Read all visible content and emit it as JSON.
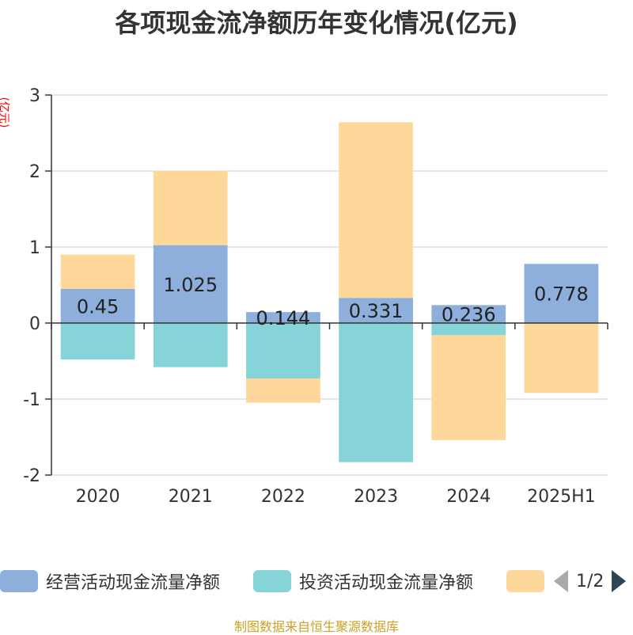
{
  "chart_data": {
    "type": "bar",
    "stacked": true,
    "title": "各项现金流净额历年变化情况(亿元)",
    "unit_label": "(亿元)",
    "categories": [
      "2020",
      "2021",
      "2022",
      "2023",
      "2024",
      "2025H1"
    ],
    "ylim": [
      -2,
      3
    ],
    "yticks": [
      -2,
      -1,
      0,
      1,
      2,
      3
    ],
    "grid": true,
    "legend_position": "bottom",
    "series": [
      {
        "name": "经营活动现金流量净额",
        "color": "#8eaedb",
        "values": [
          0.45,
          1.025,
          0.144,
          0.331,
          0.236,
          0.778
        ],
        "labels": [
          "0.45",
          "1.025",
          "0.144",
          "0.331",
          "0.236",
          "0.778"
        ]
      },
      {
        "name": "投资活动现金流量净额",
        "color": "#87d4d8",
        "values": [
          -0.48,
          -0.58,
          -0.73,
          -1.83,
          -0.16,
          0
        ]
      },
      {
        "name": "",
        "color": "#fed89a",
        "values": [
          0.45,
          0.98,
          -0.32,
          2.31,
          -1.38,
          -0.92
        ]
      }
    ]
  },
  "legend": {
    "page_indicator": "1/2"
  },
  "source_text": "制图数据来自恒生聚源数据库"
}
